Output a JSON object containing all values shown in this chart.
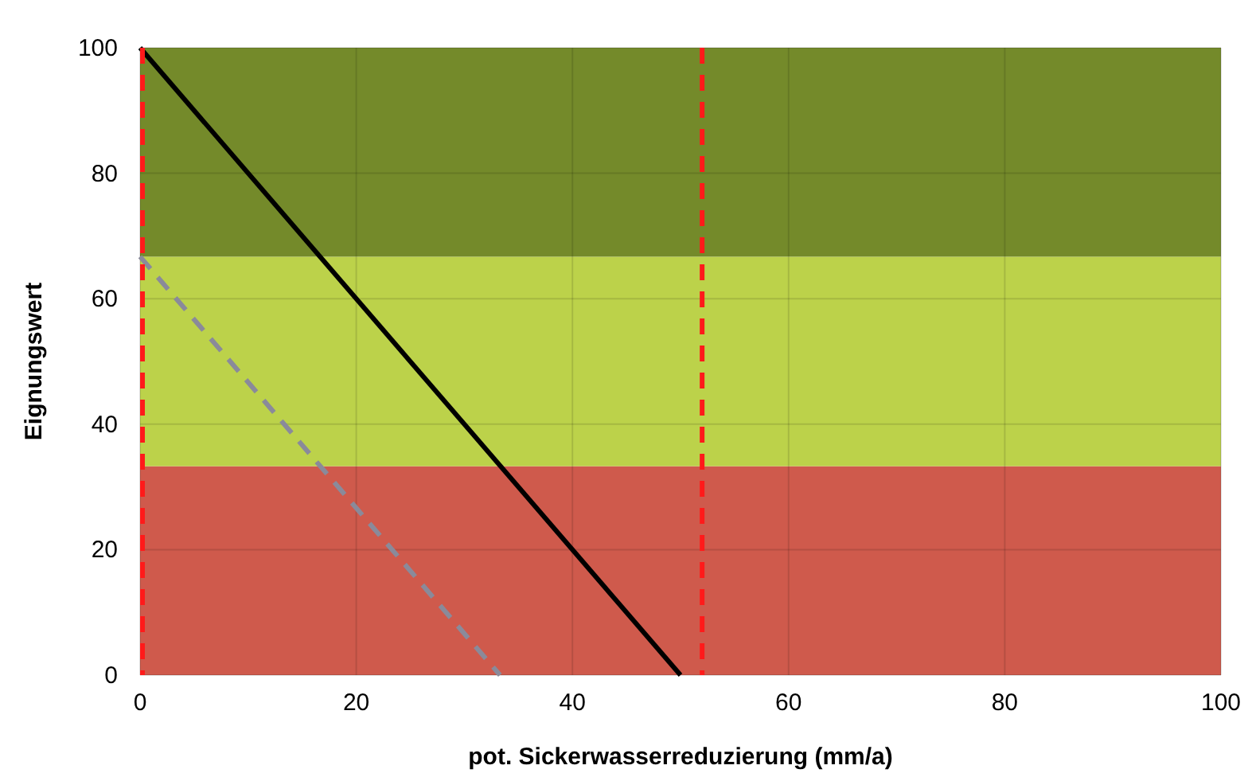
{
  "chart_data": {
    "type": "line",
    "xlabel": "pot. Sickerwasserreduzierung (mm/a)",
    "ylabel": "Eignungswert",
    "xlim": [
      0,
      100
    ],
    "ylim": [
      0,
      100
    ],
    "xticks": [
      0,
      20,
      40,
      60,
      80,
      100
    ],
    "yticks": [
      0,
      20,
      40,
      60,
      80,
      100
    ],
    "grid": true,
    "marker": "none",
    "series": [
      {
        "color": "#000000",
        "x": [
          0,
          50
        ],
        "values": [
          100,
          0
        ],
        "line_style": "solid"
      },
      {
        "color": "#8a8a9a",
        "x": [
          0,
          33.3
        ],
        "values": [
          66.7,
          0
        ],
        "line_style": "dashed"
      }
    ],
    "bands": [
      {
        "axis": "y",
        "from": 0,
        "to": 33.3,
        "color": "#cf5a4c"
      },
      {
        "axis": "y",
        "from": 33.3,
        "to": 66.7,
        "color": "#bcd24a"
      },
      {
        "axis": "y",
        "from": 66.7,
        "to": 100,
        "color": "#748a2a"
      }
    ],
    "ref_lines": [
      {
        "axis": "x",
        "value": 0,
        "color": "#ff1a1a",
        "line_style": "dashed"
      },
      {
        "axis": "x",
        "value": 52,
        "color": "#ff1a1a",
        "line_style": "dashed"
      }
    ]
  }
}
